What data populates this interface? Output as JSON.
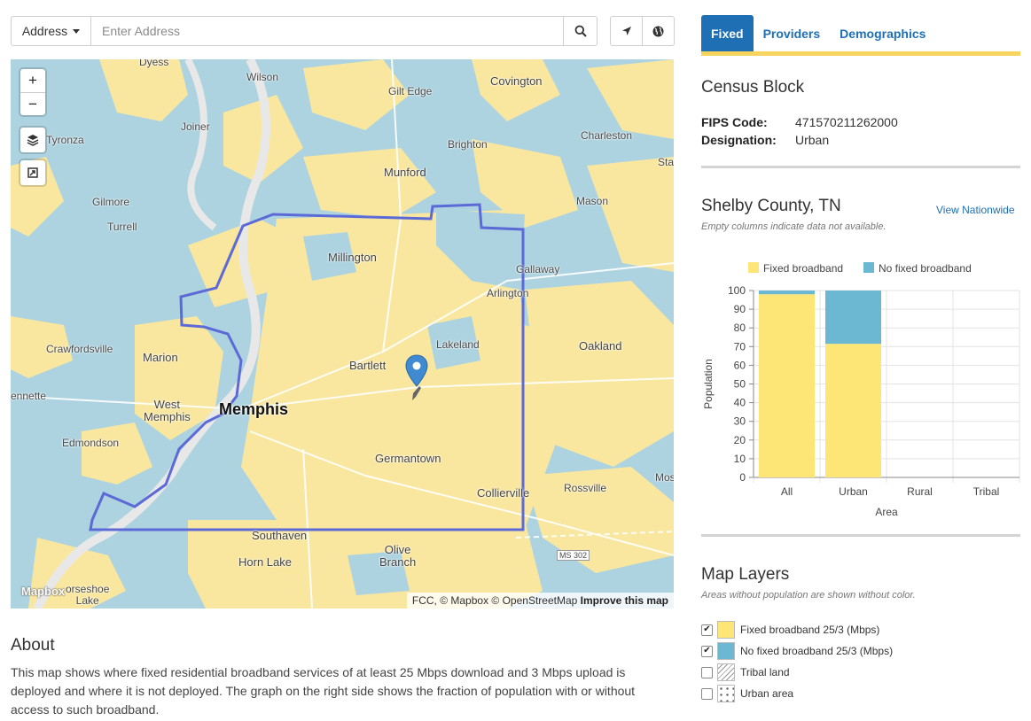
{
  "search": {
    "dropdown_label": "Address",
    "placeholder": "Enter Address"
  },
  "map": {
    "labels": {
      "dyess": "Dyess",
      "wilson": "Wilson",
      "gilt_edge": "Gilt Edge",
      "covington": "Covington",
      "joiner": "Joiner",
      "brighton": "Brighton",
      "charleston": "Charleston",
      "tyronza": "Tyronza",
      "munford": "Munford",
      "sta": "Sta",
      "gilmore": "Gilmore",
      "turrell": "Turrell",
      "mason": "Mason",
      "millington": "Millington",
      "gallaway": "Gallaway",
      "arlington": "Arlington",
      "crawfordsville": "Crawfordsville",
      "lakeland": "Lakeland",
      "oakland": "Oakland",
      "marion": "Marion",
      "bartlett": "Bartlett",
      "ennette": "ennette",
      "west_memphis": "West\nMemphis",
      "memphis": "Memphis",
      "edmondson": "Edmondson",
      "germantown": "Germantown",
      "collierville": "Collierville",
      "rossville": "Rossville",
      "mos": "Mos",
      "southaven": "Southaven",
      "olive_branch": "Olive\nBranch",
      "horn_lake": "Horn Lake",
      "ms302": "MS 302",
      "horseshoe_lake": "orseshoe\nLake"
    },
    "logo": "Mapbox",
    "attribution": "FCC, © Mapbox © OpenStreetMap",
    "improve_link": "Improve this map",
    "colors": {
      "fixed": "#f9e79f",
      "no_fixed": "#add3e0",
      "boundary": "#5b6ad6"
    }
  },
  "about": {
    "title": "About",
    "text": "This map shows where fixed residential broadband services of at least 25 Mbps download and 3 Mbps upload is deployed and where it is not deployed. The graph on the right side shows the fraction of population with or without access to such broadband."
  },
  "tabs": [
    {
      "label": "Fixed",
      "active": true
    },
    {
      "label": "Providers",
      "active": false
    },
    {
      "label": "Demographics",
      "active": false
    }
  ],
  "census": {
    "title": "Census Block",
    "fips_label": "FIPS Code:",
    "fips_value": "471570211262000",
    "designation_label": "Designation:",
    "designation_value": "Urban"
  },
  "county": {
    "title": "Shelby County, TN",
    "view_link": "View Nationwide",
    "note": "Empty columns indicate data not available."
  },
  "chart_data": {
    "type": "bar",
    "stacked": true,
    "categories": [
      "All",
      "Urban",
      "Rural",
      "Tribal"
    ],
    "series": [
      {
        "name": "Fixed broadband",
        "color": "#fde675",
        "values": [
          98,
          71.5,
          null,
          null
        ]
      },
      {
        "name": "No fixed broadband",
        "color": "#6cb8d3",
        "values": [
          2,
          28.5,
          null,
          null
        ]
      }
    ],
    "xlabel": "Area",
    "ylabel": "Population",
    "ylim": [
      0,
      100
    ],
    "yticks": [
      0,
      10,
      20,
      30,
      40,
      50,
      60,
      70,
      80,
      90,
      100
    ],
    "legend": "top",
    "grid": true
  },
  "layers": {
    "title": "Map Layers",
    "note": "Areas without population are shown without color.",
    "items": [
      {
        "label": "Fixed broadband 25/3 (Mbps)",
        "checked": true,
        "swatch": "#fde675"
      },
      {
        "label": "No fixed broadband 25/3 (Mbps)",
        "checked": true,
        "swatch": "#6cb8d3"
      },
      {
        "label": "Tribal land",
        "checked": false,
        "swatch": "hatch"
      },
      {
        "label": "Urban area",
        "checked": false,
        "swatch": "dots"
      }
    ]
  }
}
